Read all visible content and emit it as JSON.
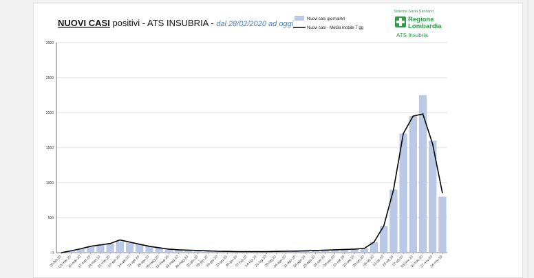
{
  "chart_data": {
    "type": "bar+line",
    "title_parts": {
      "part1": "NUOVI CASI",
      "part2": " positivi - ATS INSUBRIA - ",
      "subtitle": "dal 28/02/2020 ad oggi"
    },
    "legend": {
      "bars": "Nuovi casi giornalieri",
      "line": "Nuovi casi - Media mobile 7 gg"
    },
    "logo": {
      "top": "Sistema Socio Sanitario",
      "name1": "Regione",
      "name2": "Lombardia",
      "ats": "ATS Insubria"
    },
    "ylim": [
      0,
      3000
    ],
    "yticks": [
      0,
      500,
      1000,
      1500,
      2000,
      2500,
      3000
    ],
    "xtick_labels": [
      "25-feb-20",
      "03-mar-20",
      "10-mar-20",
      "17-mar-20",
      "24-mar-20",
      "31-mar-20",
      "07-apr-20",
      "14-apr-20",
      "21-apr-20",
      "28-apr-20",
      "05-mag-20",
      "12-mag-20",
      "19-mag-20",
      "26-mag-20",
      "02-giu-20",
      "09-giu-20",
      "16-giu-20",
      "23-giu-20",
      "30-giu-20",
      "07-lug-20",
      "14-lug-20",
      "21-lug-20",
      "28-lug-20",
      "04-ago-20",
      "11-ago-20",
      "18-ago-20",
      "25-ago-20",
      "01-set-20",
      "08-set-20",
      "15-set-20",
      "22-set-20",
      "29-set-20",
      "06-ott-20",
      "13-ott-20",
      "20-ott-20",
      "27-ott-20",
      "03-nov-20",
      "10-nov-20",
      "17-nov-20",
      "24-nov-20"
    ],
    "weekly_bars": [
      0,
      20,
      50,
      80,
      110,
      130,
      160,
      140,
      120,
      90,
      70,
      50,
      40,
      35,
      30,
      25,
      20,
      18,
      15,
      15,
      15,
      15,
      18,
      20,
      22,
      25,
      30,
      35,
      40,
      45,
      50,
      60,
      150,
      380,
      900,
      1700,
      1950,
      2250,
      1600,
      800
    ],
    "weekly_mean": [
      0,
      25,
      55,
      90,
      110,
      130,
      180,
      150,
      120,
      90,
      70,
      50,
      40,
      35,
      30,
      25,
      20,
      18,
      15,
      15,
      15,
      15,
      18,
      20,
      22,
      25,
      30,
      35,
      40,
      45,
      50,
      60,
      150,
      380,
      900,
      1700,
      1950,
      1980,
      1550,
      850
    ]
  },
  "colors": {
    "bars": "#b9c9e6",
    "line": "#000000",
    "grid": "#d0d0d0",
    "logo_green": "#2e9d45"
  }
}
